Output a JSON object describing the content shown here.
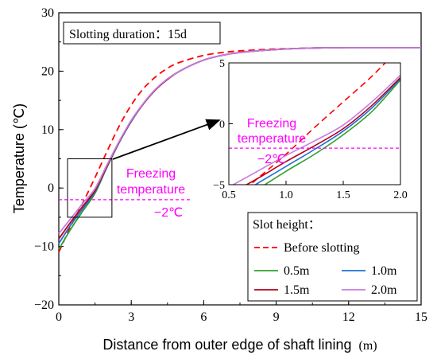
{
  "chart_data": {
    "type": "line",
    "xlabel": "Distance from outer edge of shaft lining",
    "xlabel_unit": "(m)",
    "ylabel": "Temperature (℃)",
    "xlim": [
      0,
      15
    ],
    "ylim": [
      -20,
      30
    ],
    "xticks": [
      "0",
      "3",
      "6",
      "9",
      "12",
      "15"
    ],
    "yticks": [
      "−20",
      "−10",
      "0",
      "10",
      "20",
      "30"
    ],
    "grid": false,
    "duration_label": "Slotting duration：15d",
    "freezing_label_line1": "Freezing",
    "freezing_label_line2": "temperature",
    "freezing_value_label": "−2℃",
    "freezing_temperature": -2,
    "zoom_box": {
      "x": [
        0,
        2.2
      ],
      "y": [
        -5,
        5
      ]
    },
    "legend": {
      "title": "Slot height：",
      "placement": "bottom-right",
      "entries": [
        "Before slotting",
        "0.5m",
        "1.0m",
        "1.5m",
        "2.0m"
      ]
    },
    "series": [
      {
        "name": "Before slotting",
        "color": "#ff0000",
        "style": "dashed",
        "x": [
          0,
          0.5,
          1,
          1.5,
          2,
          2.5,
          3,
          3.5,
          4,
          4.5,
          5,
          6,
          7,
          8,
          9,
          10,
          11,
          12,
          13,
          14,
          15
        ],
        "y": [
          -11,
          -6.5,
          -2.5,
          1.8,
          6.3,
          10.6,
          14.2,
          17,
          19,
          20.5,
          21.5,
          22.7,
          23.3,
          23.6,
          23.8,
          23.9,
          24,
          24,
          24,
          24,
          24
        ]
      },
      {
        "name": "0.5m",
        "color": "#32a02c",
        "style": "solid",
        "x": [
          0,
          0.5,
          1,
          1.5,
          2,
          2.5,
          3,
          3.5,
          4,
          4.5,
          5,
          6,
          7,
          8,
          9,
          10,
          11,
          12,
          13,
          14,
          15
        ],
        "y": [
          -10.5,
          -7,
          -3.9,
          -0.9,
          3.6,
          7.8,
          11.4,
          14.4,
          16.8,
          18.6,
          20,
          21.9,
          22.9,
          23.4,
          23.7,
          23.9,
          24,
          24,
          24,
          24,
          24
        ]
      },
      {
        "name": "1.0m",
        "color": "#1f6fd6",
        "style": "solid",
        "x": [
          0,
          0.5,
          1,
          1.5,
          2,
          2.5,
          3,
          3.5,
          4,
          4.5,
          5,
          6,
          7,
          8,
          9,
          10,
          11,
          12,
          13,
          14,
          15
        ],
        "y": [
          -9.5,
          -6.3,
          -3.5,
          -0.6,
          3.7,
          7.8,
          11.4,
          14.4,
          16.8,
          18.6,
          20,
          21.9,
          22.9,
          23.4,
          23.7,
          23.9,
          24,
          24,
          24,
          24,
          24
        ]
      },
      {
        "name": "1.5m",
        "color": "#b3001b",
        "style": "solid",
        "x": [
          0,
          0.5,
          1,
          1.5,
          2,
          2.5,
          3,
          3.5,
          4,
          4.5,
          5,
          6,
          7,
          8,
          9,
          10,
          11,
          12,
          13,
          14,
          15
        ],
        "y": [
          -8.7,
          -5.8,
          -3.1,
          -0.4,
          3.8,
          7.9,
          11.5,
          14.4,
          16.8,
          18.6,
          20,
          21.9,
          22.9,
          23.4,
          23.7,
          23.9,
          24,
          24,
          24,
          24,
          24
        ]
      },
      {
        "name": "2.0m",
        "color": "#c77cdf",
        "style": "solid",
        "x": [
          0,
          0.5,
          1,
          1.5,
          2,
          2.5,
          3,
          3.5,
          4,
          4.5,
          5,
          6,
          7,
          8,
          9,
          10,
          11,
          12,
          13,
          14,
          15
        ],
        "y": [
          -7.8,
          -5.2,
          -2.6,
          -0.1,
          4,
          8,
          11.6,
          14.5,
          16.9,
          18.7,
          20,
          21.9,
          22.9,
          23.4,
          23.7,
          23.9,
          24,
          24,
          24,
          24,
          24
        ]
      }
    ],
    "inset": {
      "xlim": [
        0.5,
        2.0
      ],
      "ylim": [
        -5,
        5
      ],
      "xticks": [
        "0.5",
        "1.0",
        "1.5",
        "2.0"
      ],
      "yticks": [
        "−5",
        "0",
        "5"
      ],
      "series": [
        {
          "name": "Before slotting",
          "x": [
            0.5,
            0.75,
            1,
            1.25,
            1.5,
            1.75,
            2
          ],
          "y": [
            -6.5,
            -4.5,
            -2.5,
            -0.3,
            1.8,
            3.9,
            6.3
          ]
        },
        {
          "name": "0.5m",
          "x": [
            0.5,
            0.75,
            1,
            1.25,
            1.5,
            1.75,
            2
          ],
          "y": [
            -7,
            -5.4,
            -3.9,
            -2.5,
            -0.9,
            1,
            3.6
          ]
        },
        {
          "name": "1.0m",
          "x": [
            0.5,
            0.75,
            1,
            1.25,
            1.5,
            1.75,
            2
          ],
          "y": [
            -6.3,
            -4.9,
            -3.5,
            -2.1,
            -0.6,
            1.3,
            3.7
          ]
        },
        {
          "name": "1.5m",
          "x": [
            0.5,
            0.75,
            1,
            1.25,
            1.5,
            1.75,
            2
          ],
          "y": [
            -5.8,
            -4.5,
            -3.1,
            -1.8,
            -0.4,
            1.5,
            3.8
          ]
        },
        {
          "name": "2.0m",
          "x": [
            0.5,
            0.75,
            1,
            1.25,
            1.5,
            1.75,
            2
          ],
          "y": [
            -5.2,
            -3.9,
            -2.6,
            -1.4,
            -0.1,
            1.8,
            4
          ]
        }
      ]
    }
  }
}
